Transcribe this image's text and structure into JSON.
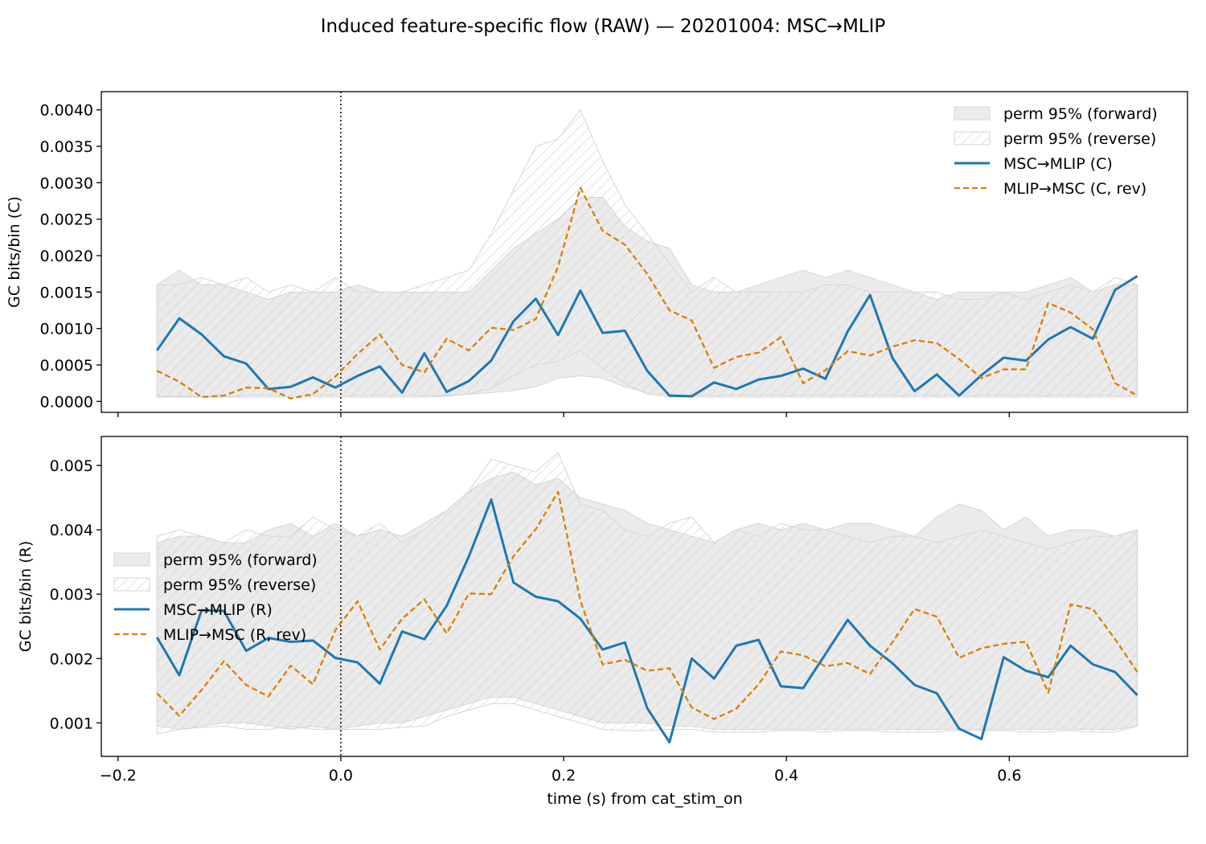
{
  "title": "Induced feature-specific flow (RAW) — 20201004: MSC→MLIP",
  "xlabel": "time (s) from cat_stim_on",
  "colors": {
    "forward_line": "#1f77b4",
    "reverse_line": "#d97f00",
    "band_fill": "#ebebeb",
    "band_edge": "#d6d6d6",
    "hatch": "#c8c8c8"
  },
  "chart_data": [
    {
      "type": "line",
      "ylabel": "GC bits/bin (C)",
      "xlim": [
        -0.215,
        0.76
      ],
      "ylim": [
        -0.00015,
        0.00425
      ],
      "xticks": [
        -0.2,
        0.0,
        0.2,
        0.4,
        0.6
      ],
      "xtick_labels": [
        "",
        "",
        "",
        "",
        ""
      ],
      "yticks": [
        0,
        0.0005,
        0.001,
        0.0015,
        0.002,
        0.0025,
        0.003,
        0.0035,
        0.004
      ],
      "ytick_labels": [
        "0.0000",
        "0.0005",
        "0.0010",
        "0.0015",
        "0.0020",
        "0.0025",
        "0.0030",
        "0.0035",
        "0.0040"
      ],
      "vline_x": 0.0,
      "legend_position": "top-right",
      "x": [
        -0.165,
        -0.145,
        -0.125,
        -0.105,
        -0.085,
        -0.065,
        -0.045,
        -0.025,
        -0.005,
        0.015,
        0.035,
        0.055,
        0.075,
        0.095,
        0.115,
        0.135,
        0.155,
        0.175,
        0.195,
        0.215,
        0.235,
        0.255,
        0.275,
        0.295,
        0.315,
        0.335,
        0.355,
        0.375,
        0.395,
        0.415,
        0.435,
        0.455,
        0.475,
        0.495,
        0.515,
        0.535,
        0.555,
        0.575,
        0.595,
        0.615,
        0.635,
        0.655,
        0.675,
        0.695,
        0.715
      ],
      "series": [
        {
          "name": "MSC→MLIP (C)",
          "style": "solid",
          "values": [
            0.0007,
            0.00114,
            0.00092,
            0.00062,
            0.00052,
            0.00017,
            0.0002,
            0.00033,
            0.00019,
            0.00035,
            0.00048,
            0.00012,
            0.00066,
            0.00013,
            0.00028,
            0.00056,
            0.0011,
            0.00141,
            0.00091,
            0.00152,
            0.00094,
            0.00097,
            0.00042,
            8e-05,
            7e-05,
            0.00026,
            0.00017,
            0.0003,
            0.00035,
            0.00045,
            0.00031,
            0.00096,
            0.00146,
            0.0006,
            0.00014,
            0.00037,
            8e-05,
            0.00036,
            0.0006,
            0.00056,
            0.00085,
            0.00102,
            0.00086,
            0.00153,
            0.00172
          ]
        },
        {
          "name": "MLIP→MSC (C, rev)",
          "style": "dashed",
          "values": [
            0.00042,
            0.00027,
            6e-05,
            8e-05,
            0.00019,
            0.00018,
            4e-05,
            0.0001,
            0.00034,
            0.00065,
            0.00092,
            0.0005,
            0.0004,
            0.00086,
            0.0007,
            0.00101,
            0.00098,
            0.00113,
            0.00185,
            0.00293,
            0.00234,
            0.00215,
            0.00175,
            0.00125,
            0.00111,
            0.00046,
            0.00061,
            0.00067,
            0.00088,
            0.00025,
            0.00043,
            0.00069,
            0.00063,
            0.00075,
            0.00084,
            0.0008,
            0.00058,
            0.00032,
            0.00044,
            0.00044,
            0.00135,
            0.00122,
            0.00099,
            0.00025,
            8e-05
          ]
        }
      ],
      "bands": [
        {
          "name": "perm 95% (forward)",
          "style": "filled",
          "upper": [
            0.0016,
            0.0018,
            0.0016,
            0.0016,
            0.0015,
            0.0014,
            0.0015,
            0.0015,
            0.0015,
            0.0016,
            0.0015,
            0.0015,
            0.0015,
            0.0015,
            0.0015,
            0.0018,
            0.0021,
            0.0023,
            0.0025,
            0.0028,
            0.0028,
            0.0024,
            0.0022,
            0.0021,
            0.0016,
            0.0015,
            0.0015,
            0.0016,
            0.0017,
            0.0018,
            0.0017,
            0.0018,
            0.0017,
            0.0016,
            0.0015,
            0.0014,
            0.0015,
            0.0015,
            0.0015,
            0.0015,
            0.0016,
            0.0017,
            0.0015,
            0.0016,
            0.0016
          ],
          "lower": [
            7e-05,
            7e-05,
            7e-05,
            7e-05,
            8e-05,
            8e-05,
            8e-05,
            8e-05,
            8e-05,
            8e-05,
            8e-05,
            8e-05,
            8e-05,
            8e-05,
            0.0001,
            0.00012,
            0.00015,
            0.0002,
            0.00032,
            0.00035,
            0.00032,
            0.0002,
            0.00012,
            8e-05,
            8e-05,
            8e-05,
            8e-05,
            8e-05,
            8e-05,
            8e-05,
            8e-05,
            8e-05,
            8e-05,
            8e-05,
            8e-05,
            8e-05,
            8e-05,
            8e-05,
            8e-05,
            8e-05,
            8e-05,
            8e-05,
            8e-05,
            8e-05,
            8e-05
          ]
        },
        {
          "name": "perm 95% (reverse)",
          "style": "hatched",
          "upper": [
            0.0016,
            0.0016,
            0.0017,
            0.0016,
            0.0017,
            0.0015,
            0.0016,
            0.0015,
            0.0017,
            0.0015,
            0.0015,
            0.0015,
            0.0016,
            0.0017,
            0.0018,
            0.0023,
            0.0029,
            0.0035,
            0.0036,
            0.004,
            0.0033,
            0.0027,
            0.0023,
            0.0019,
            0.0015,
            0.0017,
            0.0015,
            0.0015,
            0.0015,
            0.0015,
            0.0016,
            0.0016,
            0.0015,
            0.0015,
            0.0015,
            0.0015,
            0.0014,
            0.0014,
            0.0015,
            0.0014,
            0.0015,
            0.0016,
            0.0015,
            0.0017,
            0.0016
          ],
          "lower": [
            6e-05,
            6e-05,
            6e-05,
            6e-05,
            6e-05,
            6e-05,
            6e-05,
            6e-05,
            6e-05,
            6e-05,
            6e-05,
            6e-05,
            6e-05,
            7e-05,
            0.0001,
            0.00018,
            0.00035,
            0.0005,
            0.00055,
            0.0007,
            0.00045,
            0.00025,
            0.0001,
            6e-05,
            6e-05,
            6e-05,
            6e-05,
            6e-05,
            6e-05,
            6e-05,
            6e-05,
            6e-05,
            6e-05,
            6e-05,
            6e-05,
            6e-05,
            6e-05,
            6e-05,
            6e-05,
            6e-05,
            6e-05,
            6e-05,
            6e-05,
            6e-05,
            6e-05
          ]
        }
      ]
    },
    {
      "type": "line",
      "ylabel": "GC bits/bin (R)",
      "xlim": [
        -0.215,
        0.76
      ],
      "ylim": [
        0.00048,
        0.00545
      ],
      "xticks": [
        -0.2,
        0.0,
        0.2,
        0.4,
        0.6
      ],
      "xtick_labels": [
        "−0.2",
        "0.0",
        "0.2",
        "0.4",
        "0.6"
      ],
      "yticks": [
        0.001,
        0.002,
        0.003,
        0.004,
        0.005
      ],
      "ytick_labels": [
        "0.001",
        "0.002",
        "0.003",
        "0.004",
        "0.005"
      ],
      "vline_x": 0.0,
      "legend_position": "center-left",
      "x": [
        -0.165,
        -0.145,
        -0.125,
        -0.105,
        -0.085,
        -0.065,
        -0.045,
        -0.025,
        -0.005,
        0.015,
        0.035,
        0.055,
        0.075,
        0.095,
        0.115,
        0.135,
        0.155,
        0.175,
        0.195,
        0.215,
        0.235,
        0.255,
        0.275,
        0.295,
        0.315,
        0.335,
        0.355,
        0.375,
        0.395,
        0.415,
        0.435,
        0.455,
        0.475,
        0.495,
        0.515,
        0.535,
        0.555,
        0.575,
        0.595,
        0.615,
        0.635,
        0.655,
        0.675,
        0.695,
        0.715
      ],
      "series": [
        {
          "name": "MSC→MLIP (R)",
          "style": "solid",
          "values": [
            0.00233,
            0.00174,
            0.00275,
            0.00274,
            0.00212,
            0.00232,
            0.00226,
            0.00228,
            0.00201,
            0.00194,
            0.00161,
            0.00242,
            0.0023,
            0.00282,
            0.00359,
            0.00447,
            0.00318,
            0.00296,
            0.00289,
            0.00262,
            0.00214,
            0.00225,
            0.00123,
            0.0007,
            0.002,
            0.00169,
            0.0022,
            0.00229,
            0.00157,
            0.00154,
            0.00207,
            0.0026,
            0.0022,
            0.00193,
            0.00159,
            0.00146,
            0.00091,
            0.00075,
            0.00202,
            0.00181,
            0.00171,
            0.0022,
            0.00191,
            0.00179,
            0.00143
          ]
        },
        {
          "name": "MLIP→MSC (R, rev)",
          "style": "dashed",
          "values": [
            0.00146,
            0.00111,
            0.00151,
            0.00196,
            0.00159,
            0.00141,
            0.00189,
            0.0016,
            0.00244,
            0.00289,
            0.00214,
            0.00262,
            0.00292,
            0.00239,
            0.00301,
            0.003,
            0.00359,
            0.00401,
            0.00459,
            0.0029,
            0.00191,
            0.00198,
            0.00181,
            0.00185,
            0.00124,
            0.00106,
            0.00122,
            0.0016,
            0.00211,
            0.00205,
            0.00188,
            0.00193,
            0.00176,
            0.00225,
            0.00277,
            0.00265,
            0.00201,
            0.00216,
            0.00223,
            0.00226,
            0.00147,
            0.00284,
            0.00277,
            0.0023,
            0.00179
          ]
        }
      ],
      "bands": [
        {
          "name": "perm 95% (forward)",
          "style": "filled",
          "upper": [
            0.0038,
            0.0039,
            0.0039,
            0.0038,
            0.0038,
            0.004,
            0.0041,
            0.0039,
            0.0041,
            0.0039,
            0.004,
            0.0039,
            0.0041,
            0.0043,
            0.0046,
            0.0048,
            0.0049,
            0.0047,
            0.0048,
            0.0045,
            0.0044,
            0.0043,
            0.0041,
            0.004,
            0.0039,
            0.0038,
            0.004,
            0.0041,
            0.004,
            0.0041,
            0.004,
            0.0041,
            0.0041,
            0.004,
            0.0039,
            0.0042,
            0.0044,
            0.0043,
            0.004,
            0.0042,
            0.0039,
            0.004,
            0.004,
            0.0039,
            0.004
          ],
          "lower": [
            0.00095,
            0.0009,
            0.00095,
            0.001,
            0.001,
            0.00095,
            0.0009,
            0.00095,
            0.0009,
            0.00095,
            0.001,
            0.001,
            0.0011,
            0.0012,
            0.0013,
            0.0014,
            0.0014,
            0.0013,
            0.0012,
            0.0011,
            0.001,
            0.001,
            0.001,
            0.00095,
            0.00095,
            0.0009,
            0.0009,
            0.0009,
            0.0009,
            0.0009,
            0.0009,
            0.0009,
            0.0009,
            0.0009,
            0.0009,
            0.0009,
            0.0009,
            0.0009,
            0.0009,
            0.0009,
            0.0009,
            0.0009,
            0.0009,
            0.0009,
            0.00095
          ]
        },
        {
          "name": "perm 95% (reverse)",
          "style": "hatched",
          "upper": [
            0.0039,
            0.004,
            0.0039,
            0.0038,
            0.004,
            0.0039,
            0.0039,
            0.0042,
            0.004,
            0.0039,
            0.0041,
            0.0038,
            0.004,
            0.0043,
            0.0046,
            0.0051,
            0.005,
            0.0049,
            0.0052,
            0.0044,
            0.0043,
            0.004,
            0.0039,
            0.0041,
            0.0042,
            0.0038,
            0.004,
            0.0039,
            0.0041,
            0.004,
            0.004,
            0.0039,
            0.0038,
            0.0039,
            0.0039,
            0.0038,
            0.0039,
            0.004,
            0.0039,
            0.0038,
            0.0037,
            0.0038,
            0.0039,
            0.0039,
            0.004
          ],
          "lower": [
            0.00083,
            0.0009,
            0.00093,
            0.00095,
            0.0009,
            0.0009,
            0.00095,
            0.0009,
            0.0009,
            0.0009,
            0.0009,
            0.00093,
            0.00095,
            0.0011,
            0.0012,
            0.0013,
            0.0013,
            0.0012,
            0.0011,
            0.001,
            0.0009,
            0.00088,
            0.00088,
            0.0009,
            0.0009,
            0.00086,
            0.00086,
            0.00086,
            0.00088,
            0.00088,
            0.00086,
            0.00088,
            0.00088,
            0.00086,
            0.00086,
            0.00086,
            0.00088,
            0.00088,
            0.00088,
            0.00086,
            0.00086,
            0.00088,
            0.00086,
            0.00086,
            0.00095
          ]
        }
      ]
    }
  ]
}
